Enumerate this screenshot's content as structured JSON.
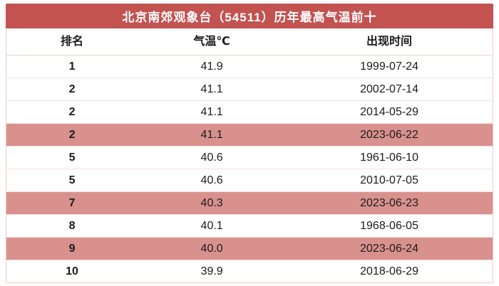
{
  "colors": {
    "header_bg": "#C25350",
    "highlight_bg": "#D9918E",
    "separator": "#F3E2E0",
    "border": "#EFC9C4",
    "text": "#1B1B1B",
    "title_text": "#FFFFFF"
  },
  "chart_data": {
    "type": "table",
    "title": "北京南郊观象台（54511）历年最高气温前十",
    "columns": [
      "排名",
      "气温℃",
      "出现时间"
    ],
    "rows": [
      [
        "1",
        "41.9",
        "1999-07-24"
      ],
      [
        "2",
        "41.1",
        "2002-07-14"
      ],
      [
        "2",
        "41.1",
        "2014-05-29"
      ],
      [
        "2",
        "41.1",
        "2023-06-22"
      ],
      [
        "5",
        "40.6",
        "1961-06-10"
      ],
      [
        "5",
        "40.6",
        "2010-07-05"
      ],
      [
        "7",
        "40.3",
        "2023-06-23"
      ],
      [
        "8",
        "40.1",
        "1968-06-05"
      ],
      [
        "9",
        "40.0",
        "2023-06-24"
      ],
      [
        "10",
        "39.9",
        "2018-06-29"
      ]
    ],
    "highlighted_rows": [
      3,
      6,
      8
    ]
  }
}
